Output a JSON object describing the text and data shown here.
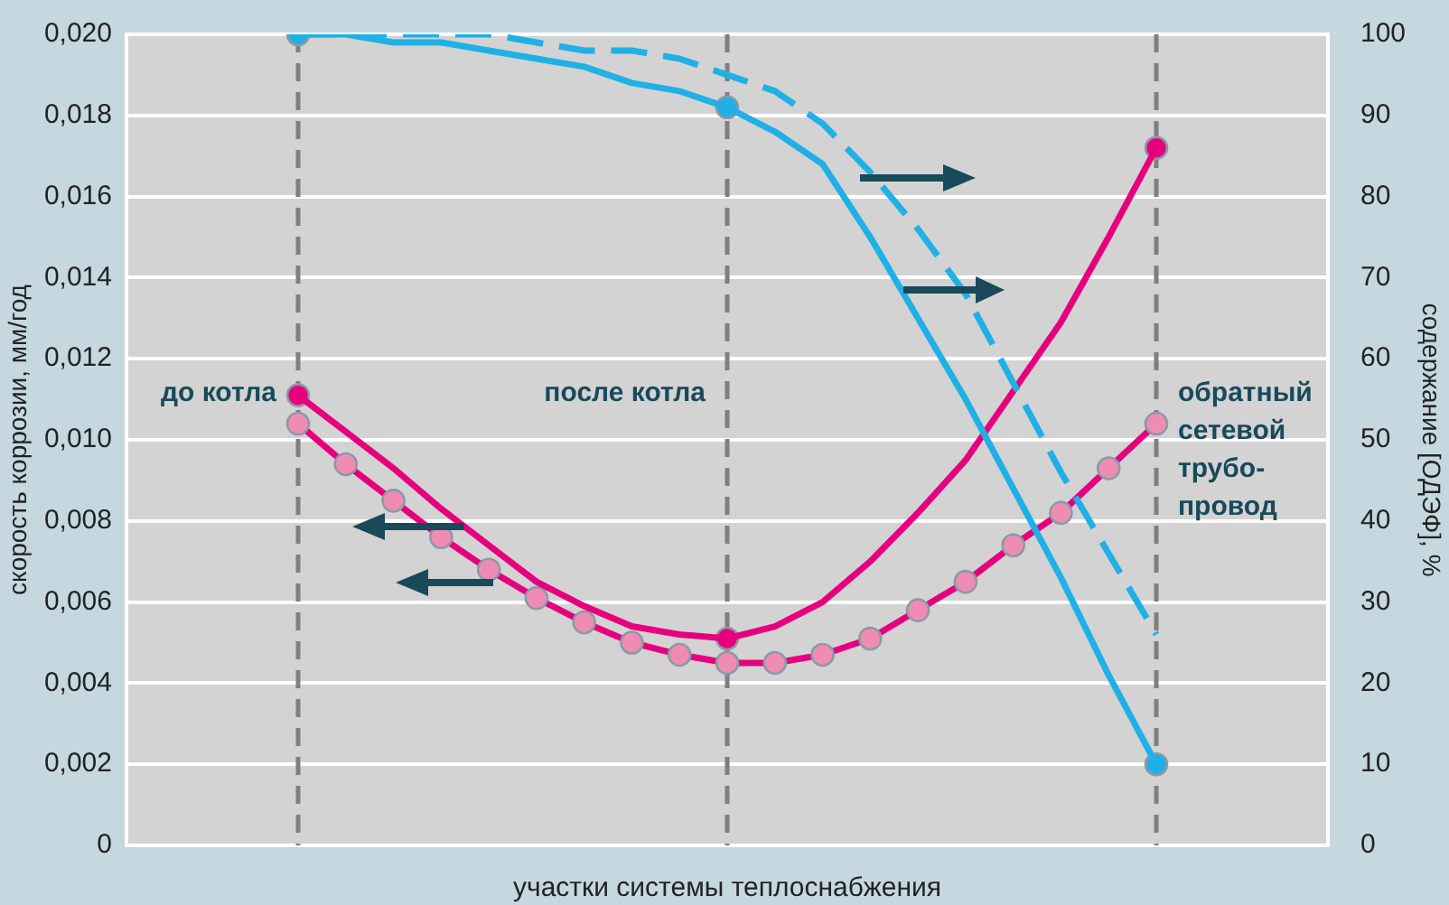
{
  "chart_data": {
    "type": "line",
    "xlabel": "участки системы теплоснабжения",
    "ylabel": "скорость коррозии, мм/год",
    "y2label": "содержание [ОДЭФ], %",
    "categories": [
      null,
      null,
      null,
      null,
      null,
      null,
      null,
      null,
      null,
      null,
      null,
      null,
      null,
      null,
      null,
      null,
      null,
      null,
      null
    ],
    "ylim": [
      0,
      0.02
    ],
    "y2lim": [
      0,
      100
    ],
    "yticks": [
      0,
      {
        "value": 0.002,
        "label": "0,002"
      },
      {
        "value": 0.004,
        "label": "0,004"
      },
      {
        "value": 0.006,
        "label": "0,006"
      },
      {
        "value": 0.008,
        "label": "0,008"
      },
      {
        "value": 0.01,
        "label": "0,010"
      },
      {
        "value": 0.012,
        "label": "0,012"
      },
      {
        "value": 0.014,
        "label": "0,014"
      },
      {
        "value": 0.016,
        "label": "0,016"
      },
      {
        "value": 0.018,
        "label": "0,018"
      },
      {
        "value": 0.02,
        "label": "0,020"
      }
    ],
    "y2ticks": [
      0,
      10,
      20,
      30,
      40,
      50,
      60,
      70,
      80,
      90,
      100
    ],
    "grid": true,
    "legend": false,
    "annotations": [
      "до котла",
      "после котла",
      "обратный\nсетевой\nтрубо-\nпровод"
    ],
    "series": [
      {
        "axis": "y2",
        "color": "#1fb0e6",
        "line_style": "dashed",
        "marker": "none",
        "values": [
          100,
          100,
          100,
          100,
          100,
          99,
          98,
          98,
          97,
          95,
          93,
          89,
          83,
          76,
          68,
          57,
          46,
          36,
          26
        ]
      },
      {
        "axis": "y2",
        "color": "#1fb0e6",
        "line_style": "solid",
        "marker": "none",
        "values": [
          100,
          100,
          99,
          99,
          98,
          97,
          96,
          94,
          93,
          91,
          88,
          84,
          75,
          65,
          55,
          44,
          33,
          21,
          10
        ]
      },
      {
        "axis": "y",
        "color": "#e6007e",
        "line_style": "solid",
        "marker": "none",
        "values": [
          0.0111,
          0.0102,
          0.0093,
          0.0083,
          0.0074,
          0.0065,
          0.0059,
          0.0054,
          0.0052,
          0.0051,
          0.0054,
          0.006,
          0.007,
          0.0082,
          0.0095,
          0.0112,
          0.0129,
          0.015,
          0.0172
        ]
      },
      {
        "axis": "y",
        "color": "#e6007e",
        "line_style": "solid",
        "marker": "circle",
        "colors": [
          "#f08cb4",
          "#f08cb4",
          "#f08cb4",
          "#f08cb4",
          "#f08cb4",
          "#f08cb4",
          "#f08cb4",
          "#f08cb4",
          "#f08cb4",
          "#f08cb4",
          "#f08cb4",
          "#f08cb4",
          "#f08cb4",
          "#f08cb4",
          "#f08cb4",
          "#f08cb4",
          "#f08cb4",
          "#f08cb4",
          "#f08cb4"
        ],
        "values": [
          0.0104,
          0.0094,
          0.0085,
          0.0076,
          0.0068,
          0.0061,
          0.0055,
          0.005,
          0.0047,
          0.0045,
          0.0045,
          0.0047,
          0.0051,
          0.0058,
          0.0065,
          0.0074,
          0.0082,
          0.0093,
          0.0104
        ]
      },
      {
        "type": "scatter",
        "axis": "y2",
        "color": "#1fb0e6",
        "marker": "circle",
        "values": [
          100,
          null,
          null,
          null,
          null,
          null,
          null,
          null,
          null,
          91,
          null,
          null,
          null,
          null,
          null,
          null,
          null,
          null,
          10
        ]
      },
      {
        "type": "scatter",
        "axis": "y",
        "color": "#e6007e",
        "marker": "circle",
        "values": [
          0.0111,
          null,
          null,
          null,
          null,
          null,
          null,
          null,
          null,
          0.0051,
          null,
          null,
          null,
          null,
          null,
          null,
          null,
          null,
          0.0172
        ]
      }
    ]
  }
}
